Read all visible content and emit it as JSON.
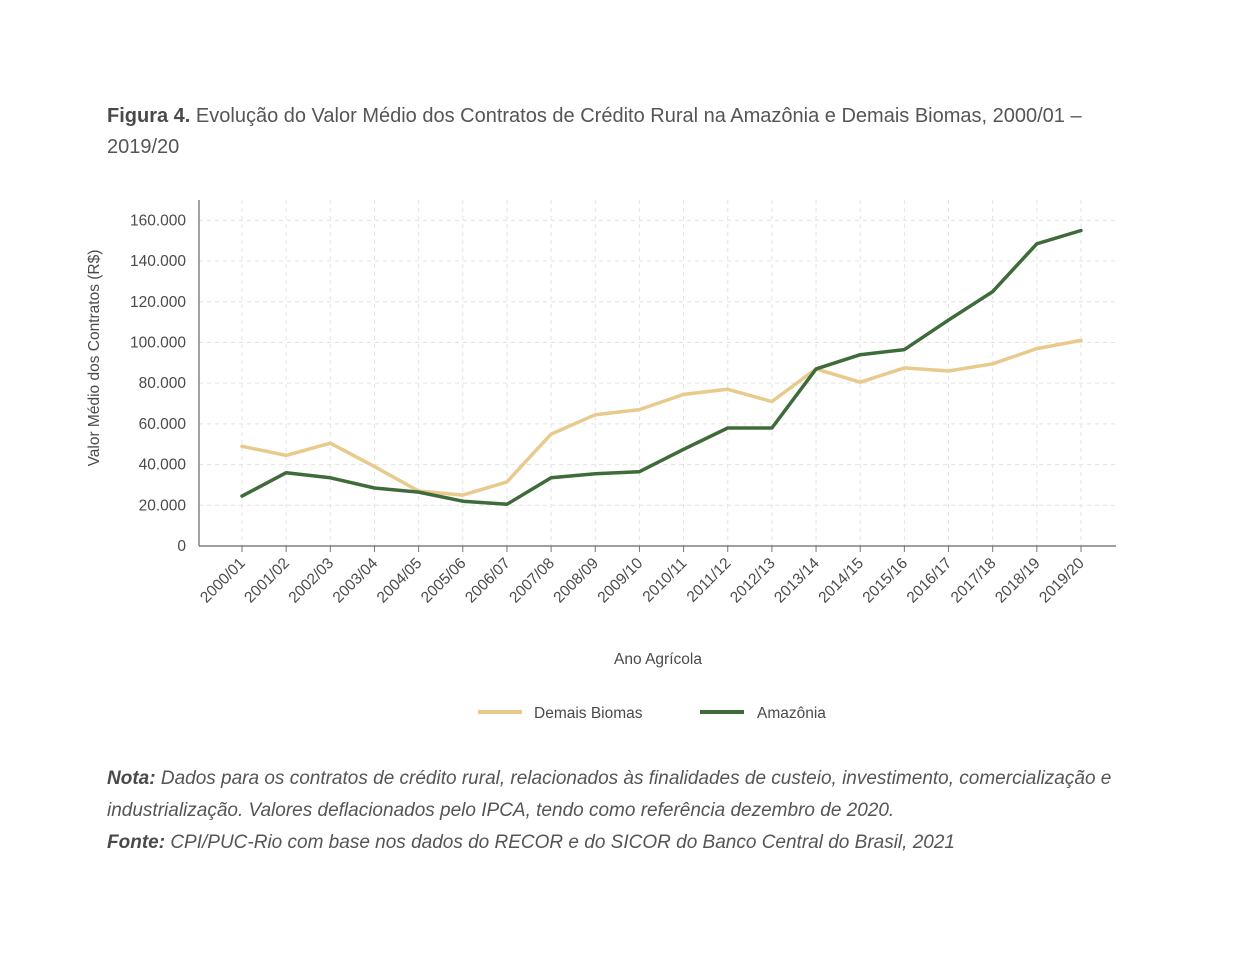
{
  "figure": {
    "label": "Figura 4.",
    "title": "Evolução do Valor Médio dos Contratos de Crédito Rural na Amazônia e Demais Biomas, 2000/01 – 2019/20"
  },
  "chart_data": {
    "type": "line",
    "xlabel": "Ano Agrícola",
    "ylabel": "Valor Médio dos Contratos (R$)",
    "ylim": [
      0,
      170000
    ],
    "yticks": [
      0,
      20000,
      40000,
      60000,
      80000,
      100000,
      120000,
      140000,
      160000
    ],
    "ytick_labels": [
      "0",
      "20.000",
      "40.000",
      "60.000",
      "80.000",
      "100.000",
      "120.000",
      "140.000",
      "160.000"
    ],
    "grid": true,
    "legend_position": "bottom",
    "categories": [
      "2000/01",
      "2001/02",
      "2002/03",
      "2003/04",
      "2004/05",
      "2005/06",
      "2006/07",
      "2007/08",
      "2008/09",
      "2009/10",
      "2010/11",
      "2011/12",
      "2012/13",
      "2013/14",
      "2014/15",
      "2015/16",
      "2016/17",
      "2017/18",
      "2018/19",
      "2019/20"
    ],
    "series": [
      {
        "name": "Demais Biomas",
        "color": "#e8ca8c",
        "values": [
          49000,
          44500,
          50500,
          39000,
          27000,
          25000,
          31500,
          55000,
          64500,
          67000,
          74500,
          77000,
          71000,
          87000,
          80500,
          87500,
          86000,
          89500,
          97000,
          101000
        ]
      },
      {
        "name": "Amazônia",
        "color": "#3f6b3a",
        "values": [
          24500,
          36000,
          33500,
          28500,
          26500,
          22000,
          20500,
          33500,
          35500,
          36500,
          47500,
          58000,
          58000,
          87000,
          94000,
          96500,
          111000,
          125000,
          148500,
          155000
        ]
      }
    ]
  },
  "notes": {
    "nota_label": "Nota:",
    "nota_text": " Dados para os contratos de crédito rural, relacionados às finalidades de custeio, investimento, comercialização e industrialização. Valores deflacionados pelo IPCA, tendo como referência dezembro de 2020.",
    "fonte_label": "Fonte:",
    "fonte_text": " CPI/PUC-Rio com base nos dados do RECOR e do SICOR do Banco Central do Brasil, 2021"
  }
}
